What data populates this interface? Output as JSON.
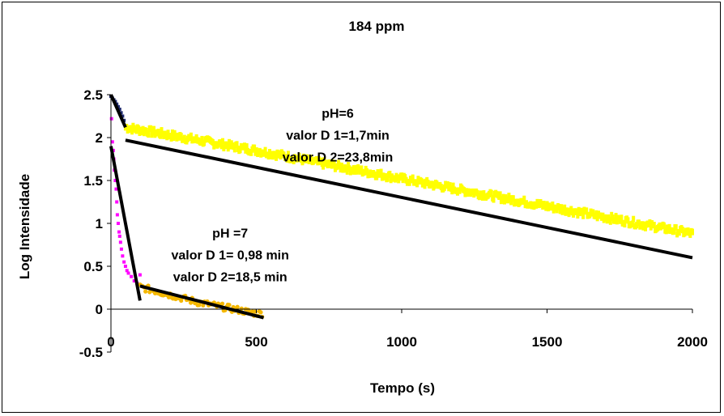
{
  "chart_data": {
    "type": "scatter",
    "title": "184 ppm",
    "xlabel": "Tempo (s)",
    "ylabel": "Log Intensidade",
    "xlim": [
      0,
      2000
    ],
    "ylim": [
      -0.5,
      2.5
    ],
    "x_ticks": [
      "0",
      "500",
      "1000",
      "1500",
      "2000"
    ],
    "y_ticks": [
      "2.5",
      "2",
      "1.5",
      "1",
      "0.5",
      "0",
      "-0.5"
    ],
    "grid": false,
    "legend": "none",
    "series": [
      {
        "color": "#ffff00",
        "points_x_range": [
          50,
          2000
        ],
        "trend": [
          [
            50,
            2.12
          ],
          [
            500,
            1.85
          ],
          [
            1000,
            1.52
          ],
          [
            1500,
            1.2
          ],
          [
            2000,
            0.88
          ]
        ],
        "noise": 0.04
      },
      {
        "color": "#1f2a6e",
        "points": [
          [
            0,
            2.48
          ],
          [
            5,
            2.46
          ],
          [
            10,
            2.44
          ],
          [
            15,
            2.42
          ],
          [
            20,
            2.39
          ],
          [
            25,
            2.36
          ],
          [
            30,
            2.33
          ],
          [
            35,
            2.29
          ],
          [
            40,
            2.25
          ],
          [
            45,
            2.2
          ]
        ]
      },
      {
        "color": "#ff00ff",
        "points": [
          [
            2,
            2.22
          ],
          [
            5,
            1.95
          ],
          [
            8,
            1.85
          ],
          [
            10,
            1.75
          ],
          [
            12,
            1.62
          ],
          [
            15,
            1.5
          ],
          [
            18,
            1.4
          ],
          [
            20,
            1.25
          ],
          [
            22,
            1.1
          ],
          [
            25,
            1.0
          ],
          [
            28,
            0.9
          ],
          [
            30,
            0.85
          ],
          [
            33,
            0.78
          ],
          [
            36,
            0.7
          ],
          [
            40,
            0.62
          ],
          [
            45,
            0.55
          ],
          [
            50,
            0.5
          ],
          [
            55,
            0.45
          ],
          [
            60,
            0.42
          ],
          [
            70,
            0.38
          ],
          [
            80,
            0.33
          ],
          [
            90,
            0.3
          ],
          [
            100,
            0.4
          ]
        ]
      },
      {
        "color": "#f5b800",
        "points_x_range": [
          100,
          520
        ],
        "trend": [
          [
            100,
            0.26
          ],
          [
            300,
            0.08
          ],
          [
            500,
            -0.05
          ]
        ],
        "noise": 0.04
      }
    ],
    "fit_lines": [
      {
        "x": [
          0,
          50
        ],
        "y": [
          2.5,
          2.12
        ]
      },
      {
        "x": [
          50,
          2000
        ],
        "y": [
          1.97,
          0.6
        ]
      },
      {
        "x": [
          0,
          100
        ],
        "y": [
          1.9,
          0.1
        ]
      },
      {
        "x": [
          100,
          525
        ],
        "y": [
          0.27,
          -0.1
        ]
      }
    ],
    "annotations": [
      {
        "lines": [
          "pH=6",
          "valor D 1=1,7min",
          "valor D 2=23,8min"
        ],
        "x": 780,
        "y": 1.95
      },
      {
        "lines": [
          "pH =7",
          "valor D 1= 0,98 min",
          "valor D 2=18,5 min"
        ],
        "x": 410,
        "y": 0.55
      }
    ]
  }
}
